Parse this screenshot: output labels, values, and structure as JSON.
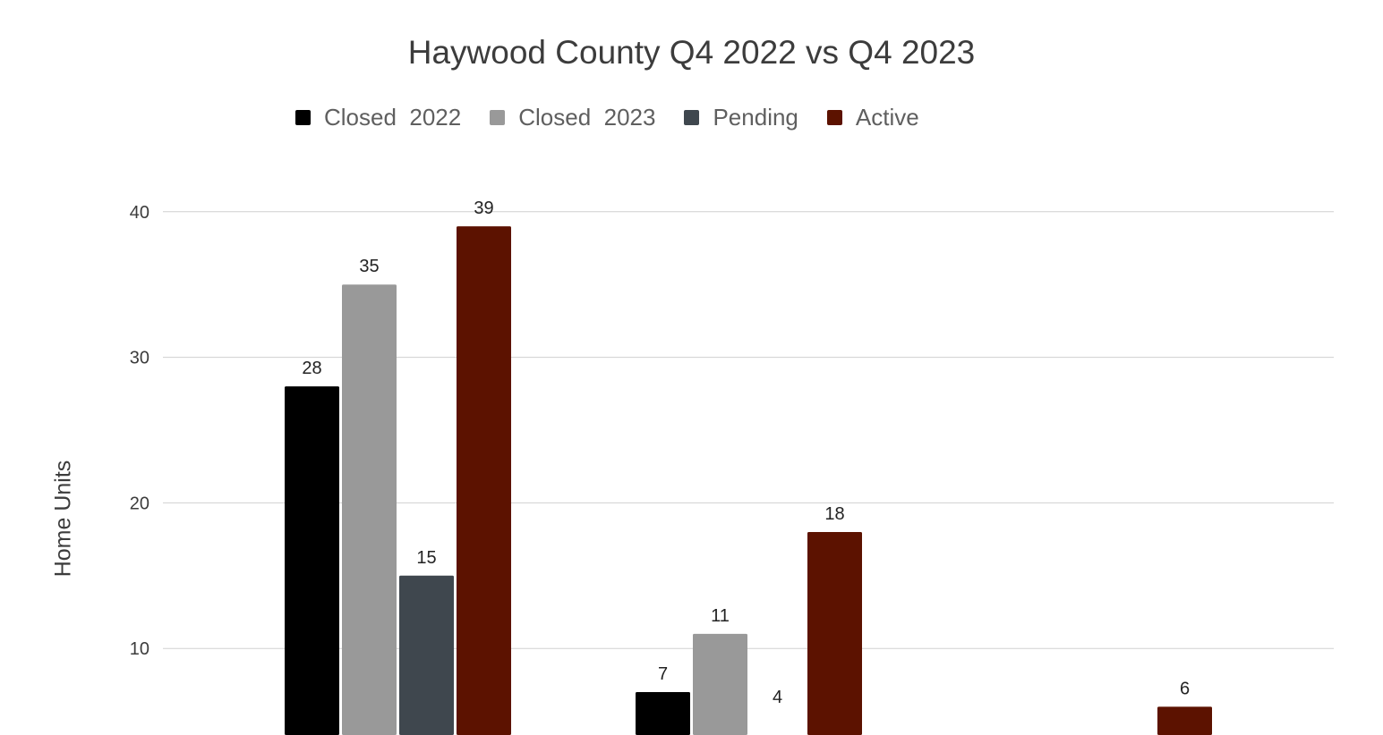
{
  "chart_data": {
    "type": "bar",
    "title": "Haywood County Q4 2022 vs Q4 2023",
    "xlabel": "",
    "ylabel": "Home Units",
    "ylim": [
      0,
      40
    ],
    "y_ticks": [
      "10",
      "20",
      "30",
      "40"
    ],
    "grid": true,
    "legend_position": "top",
    "series": [
      {
        "name": "Closed  2022",
        "color": "#000000",
        "values": [
          28,
          7,
          null
        ]
      },
      {
        "name": "Closed  2023",
        "color": "#999999",
        "values": [
          35,
          11,
          null
        ]
      },
      {
        "name": "Pending",
        "color": "#3f474e",
        "values": [
          15,
          4,
          null
        ]
      },
      {
        "name": "Active",
        "color": "#5c1200",
        "values": [
          39,
          18,
          6
        ]
      }
    ]
  }
}
